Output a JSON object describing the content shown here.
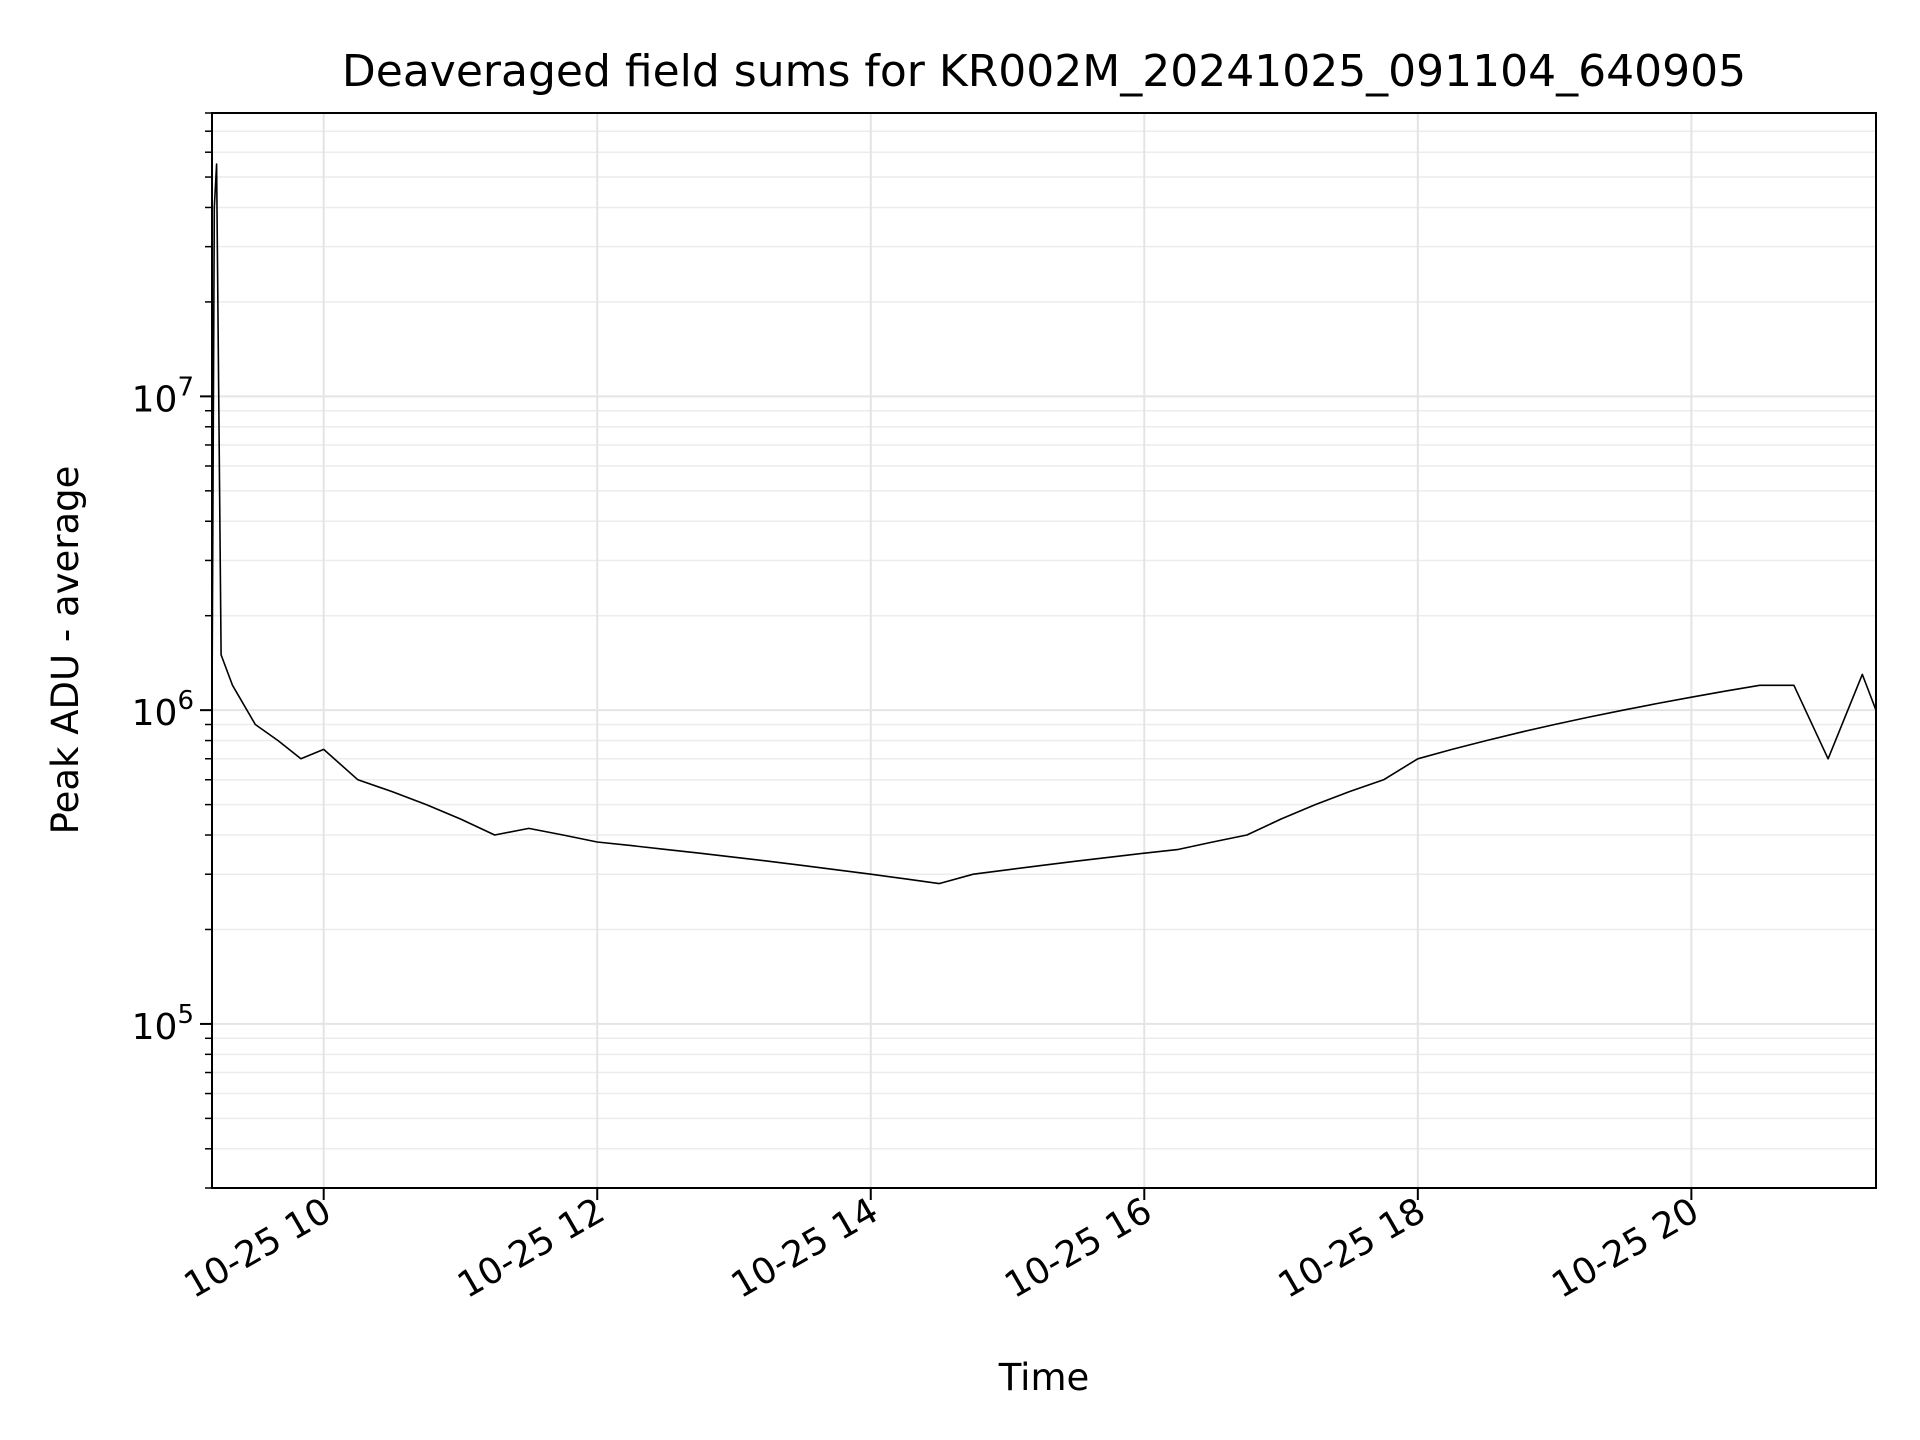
{
  "chart_data": {
    "type": "line",
    "title": "Deaveraged field sums for KR002M_20241025_091104_640905",
    "xlabel": "Time",
    "ylabel": "Peak ADU - average",
    "yscale": "log",
    "ylim": [
      30000,
      80000000
    ],
    "xlim": [
      "2024-10-25 09:11",
      "2024-10-25 21:21"
    ],
    "grid": true,
    "line_color": "#000000",
    "x_ticks": [
      {
        "label": "10-25 10",
        "value": "2024-10-25 10:00"
      },
      {
        "label": "10-25 12",
        "value": "2024-10-25 12:00"
      },
      {
        "label": "10-25 14",
        "value": "2024-10-25 14:00"
      },
      {
        "label": "10-25 16",
        "value": "2024-10-25 16:00"
      },
      {
        "label": "10-25 18",
        "value": "2024-10-25 18:00"
      },
      {
        "label": "10-25 20",
        "value": "2024-10-25 20:00"
      }
    ],
    "y_ticks": [
      {
        "base": "10",
        "exp": "5",
        "value": 100000
      },
      {
        "base": "10",
        "exp": "6",
        "value": 1000000
      },
      {
        "base": "10",
        "exp": "7",
        "value": 10000000
      }
    ],
    "series": [
      {
        "x": [
          "2024-10-25 09:11",
          "2024-10-25 09:12",
          "2024-10-25 09:13",
          "2024-10-25 09:15",
          "2024-10-25 09:20",
          "2024-10-25 09:30",
          "2024-10-25 09:40",
          "2024-10-25 09:50",
          "2024-10-25 10:00",
          "2024-10-25 10:15",
          "2024-10-25 10:30",
          "2024-10-25 10:45",
          "2024-10-25 11:00",
          "2024-10-25 11:15",
          "2024-10-25 11:30",
          "2024-10-25 11:45",
          "2024-10-25 12:00",
          "2024-10-25 12:15",
          "2024-10-25 12:30",
          "2024-10-25 12:45",
          "2024-10-25 13:00",
          "2024-10-25 13:15",
          "2024-10-25 13:30",
          "2024-10-25 13:45",
          "2024-10-25 14:00",
          "2024-10-25 14:15",
          "2024-10-25 14:30",
          "2024-10-25 14:45",
          "2024-10-25 15:00",
          "2024-10-25 15:15",
          "2024-10-25 15:30",
          "2024-10-25 15:45",
          "2024-10-25 16:00",
          "2024-10-25 16:15",
          "2024-10-25 16:30",
          "2024-10-25 16:45",
          "2024-10-25 17:00",
          "2024-10-25 17:15",
          "2024-10-25 17:30",
          "2024-10-25 17:45",
          "2024-10-25 18:00",
          "2024-10-25 18:15",
          "2024-10-25 18:30",
          "2024-10-25 18:45",
          "2024-10-25 19:00",
          "2024-10-25 19:15",
          "2024-10-25 19:30",
          "2024-10-25 19:45",
          "2024-10-25 20:00",
          "2024-10-25 20:15",
          "2024-10-25 20:30",
          "2024-10-25 20:45",
          "2024-10-25 21:00",
          "2024-10-25 21:15",
          "2024-10-25 21:21"
        ],
        "values": [
          1000000,
          40000000,
          55000000,
          1500000,
          1200000,
          900000,
          800000,
          700000,
          750000,
          600000,
          550000,
          500000,
          450000,
          400000,
          420000,
          400000,
          380000,
          370000,
          360000,
          350000,
          340000,
          330000,
          320000,
          310000,
          300000,
          290000,
          280000,
          300000,
          310000,
          320000,
          330000,
          340000,
          350000,
          360000,
          380000,
          400000,
          450000,
          500000,
          550000,
          600000,
          700000,
          750000,
          800000,
          850000,
          900000,
          950000,
          1000000,
          1050000,
          1100000,
          1150000,
          1200000,
          1200000,
          700000,
          1300000,
          1000000
        ]
      }
    ]
  }
}
